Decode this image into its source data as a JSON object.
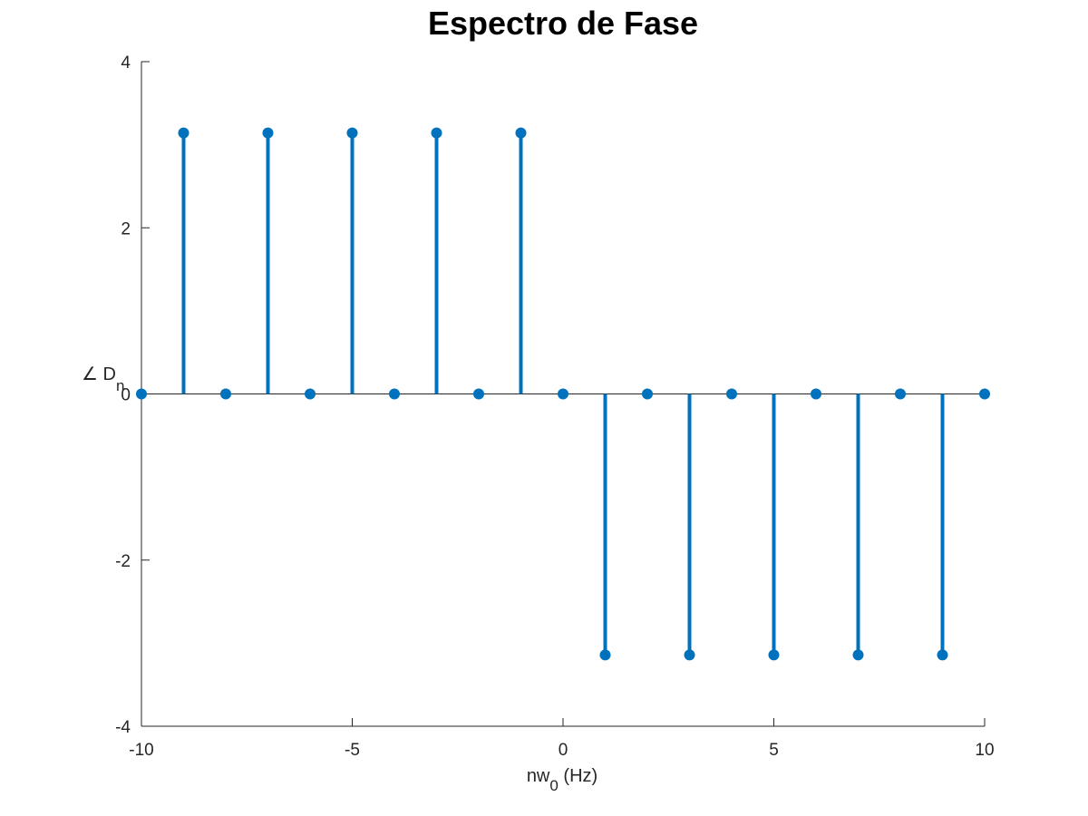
{
  "chart_data": {
    "type": "stem",
    "title": "Espectro de Fase",
    "xlabel": {
      "main": "nw",
      "sub": "0",
      "suffix": " (Hz)"
    },
    "ylabel": {
      "main": "∠ D",
      "sub": "n"
    },
    "xlim": [
      -10,
      10
    ],
    "ylim": [
      -4,
      4
    ],
    "xticks": [
      -10,
      -5,
      0,
      5,
      10
    ],
    "yticks": [
      -4,
      -2,
      0,
      2,
      4
    ],
    "grid": false,
    "baseline": 0,
    "color": "#0072BD",
    "x": [
      -10,
      -9,
      -8,
      -7,
      -6,
      -5,
      -4,
      -3,
      -2,
      -1,
      0,
      1,
      2,
      3,
      4,
      5,
      6,
      7,
      8,
      9,
      10
    ],
    "y": [
      0,
      3.1416,
      0,
      3.1416,
      0,
      3.1416,
      0,
      3.1416,
      0,
      3.1416,
      0,
      -3.1416,
      0,
      -3.1416,
      0,
      -3.1416,
      0,
      -3.1416,
      0,
      -3.1416,
      0
    ]
  }
}
